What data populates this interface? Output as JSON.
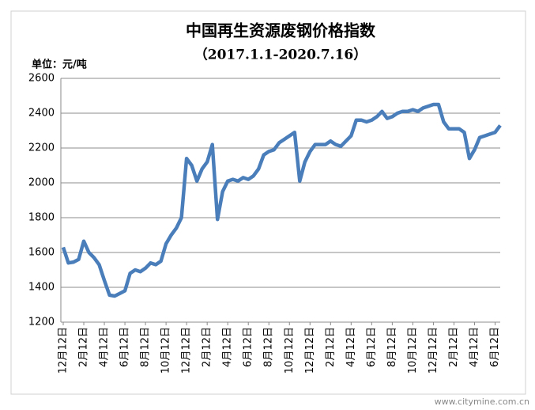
{
  "chart_data": {
    "type": "line",
    "title": "中国再生资源废钢价格指数",
    "subtitle": "（2017.1.1-2020.7.16）",
    "unit_label": "单位：元/吨",
    "watermark": "www.citymine.com.cn",
    "categories": [
      "12月12日",
      null,
      null,
      null,
      "2月12日",
      null,
      null,
      null,
      "4月12日",
      null,
      null,
      null,
      "6月12日",
      null,
      null,
      null,
      "8月12日",
      null,
      null,
      null,
      "10月12日",
      null,
      null,
      null,
      "12月12日",
      null,
      null,
      null,
      "2月12日",
      null,
      null,
      null,
      "4月12日",
      null,
      null,
      null,
      "6月12日",
      null,
      null,
      null,
      "8月12日",
      null,
      null,
      null,
      "10月12日",
      null,
      null,
      null,
      "12月12日",
      null,
      null,
      null,
      "2月12日",
      null,
      null,
      null,
      "4月12日",
      null,
      null,
      null,
      "6月12日",
      null,
      null,
      null,
      "8月12日",
      null,
      null,
      null,
      "10月12日",
      null,
      null,
      null,
      "12月12日",
      null,
      null,
      null,
      "2月12日",
      null,
      null,
      null,
      "4月12日",
      null,
      null,
      null,
      "6月12日",
      null
    ],
    "series": [
      {
        "color": "#4a7ebb",
        "values": [
          1630,
          1540,
          1545,
          1560,
          1665,
          1600,
          1570,
          1530,
          1440,
          1355,
          1350,
          1365,
          1380,
          1480,
          1500,
          1490,
          1510,
          1540,
          1530,
          1550,
          1650,
          1700,
          1740,
          1800,
          2140,
          2100,
          2010,
          2080,
          2120,
          2220,
          1790,
          1950,
          2010,
          2020,
          2010,
          2030,
          2020,
          2040,
          2080,
          2160,
          2180,
          2190,
          2230,
          2250,
          2270,
          2290,
          2010,
          2120,
          2180,
          2220,
          2220,
          2220,
          2240,
          2220,
          2210,
          2240,
          2270,
          2360,
          2360,
          2350,
          2360,
          2380,
          2410,
          2370,
          2380,
          2400,
          2410,
          2410,
          2420,
          2410,
          2430,
          2440,
          2450,
          2450,
          2350,
          2310,
          2310,
          2310,
          2290,
          2140,
          2190,
          2260,
          2270,
          2280,
          2290,
          2330
        ]
      }
    ],
    "ylim": [
      1200,
      2600
    ],
    "yticks": [
      1200,
      1400,
      1600,
      1800,
      2000,
      2200,
      2400,
      2600
    ],
    "grid": true
  }
}
